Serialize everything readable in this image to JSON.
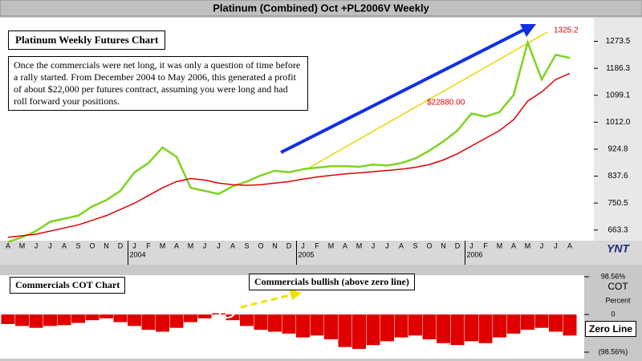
{
  "chart_data": [
    {
      "type": "line",
      "title": "Platinum (Combined) Oct +PL2006V Weekly",
      "chart_title": "Platinum Weekly Futures Chart",
      "note": "Once the commercials were net long, it was only a question of time before a rally started. From December 2004 to May 2006, this generated a profit of about $22,000 per futures contract, assuming you were long and had roll forward your positions.",
      "annotations": [
        "$22880.00",
        "1325.2"
      ],
      "logo": "YNT",
      "categories": [
        "A",
        "M",
        "J",
        "J",
        "A",
        "S",
        "O",
        "N",
        "D",
        "J",
        "F",
        "M",
        "A",
        "M",
        "J",
        "J",
        "A",
        "S",
        "O",
        "N",
        "D",
        "J",
        "F",
        "M",
        "A",
        "M",
        "J",
        "J",
        "A",
        "S",
        "O",
        "N",
        "D",
        "J",
        "F",
        "M",
        "A",
        "M",
        "J",
        "J",
        "A"
      ],
      "x_groups": [
        {
          "label": "2004",
          "start": 9
        },
        {
          "label": "2005",
          "start": 21
        },
        {
          "label": "2006",
          "start": 33
        }
      ],
      "series": [
        {
          "color": "#7dd321",
          "values": [
            625,
            640,
            660,
            690,
            700,
            710,
            740,
            760,
            790,
            850,
            880,
            930,
            900,
            800,
            790,
            780,
            805,
            820,
            840,
            855,
            850,
            860,
            865,
            870,
            870,
            868,
            875,
            872,
            880,
            895,
            920,
            950,
            985,
            1040,
            1030,
            1045,
            1100,
            1270,
            1150,
            1230,
            1220
          ]
        },
        {
          "color": "#e00000",
          "values": [
            640,
            645,
            650,
            660,
            670,
            680,
            695,
            710,
            730,
            750,
            775,
            800,
            820,
            830,
            825,
            815,
            810,
            808,
            810,
            815,
            820,
            828,
            835,
            840,
            845,
            848,
            852,
            856,
            860,
            866,
            875,
            890,
            910,
            935,
            960,
            985,
            1020,
            1080,
            1110,
            1150,
            1170
          ]
        }
      ],
      "ylim": [
        629,
        1350
      ],
      "yticks": [
        663.3,
        750.5,
        837.6,
        924.8,
        {
          "value": 1012,
          "label": "1012.0"
        },
        1099.1,
        1186.3,
        1273.5
      ]
    },
    {
      "type": "bar",
      "title": "Commercials COT Chart",
      "annotations": [
        "Commercials bullish (above zero line)",
        "Zero Line"
      ],
      "axis_title": "COT",
      "axis_unit": "Percent",
      "color": "#e00000",
      "values": [
        -25,
        -30,
        -35,
        -30,
        -28,
        -22,
        -15,
        -10,
        -20,
        -30,
        -40,
        -45,
        -35,
        -20,
        -10,
        3,
        -15,
        -30,
        -40,
        -45,
        -50,
        -60,
        -55,
        -65,
        -85,
        -90,
        -80,
        -70,
        -60,
        -55,
        -65,
        -75,
        -80,
        -70,
        -75,
        -60,
        -50,
        -40,
        -35,
        -45,
        -55
      ],
      "ylim": [
        -98.56,
        98.56
      ],
      "yticks": [
        {
          "value": 98.56,
          "label": "98.56%"
        },
        0,
        {
          "value": -98.56,
          "label": "(98.56%)"
        }
      ]
    }
  ]
}
